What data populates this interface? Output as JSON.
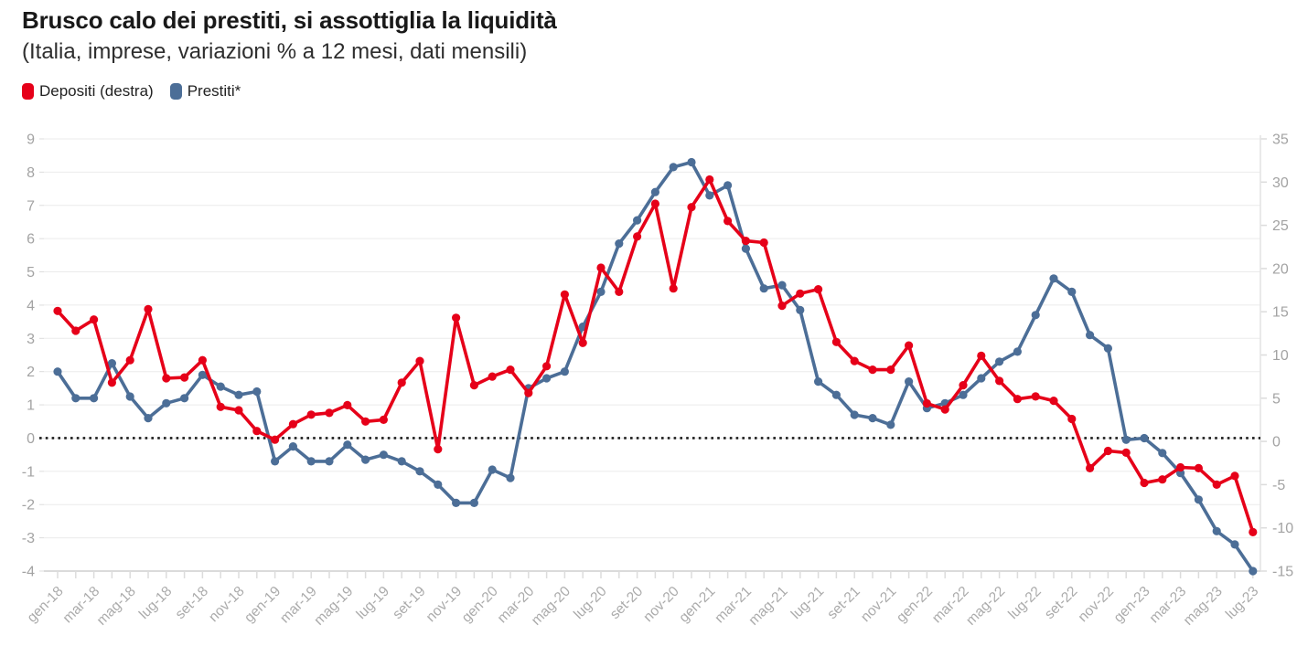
{
  "header": {
    "title": "Brusco calo dei prestiti, si assottiglia la liquidità",
    "subtitle": "(Italia, imprese, variazioni % a 12 mesi, dati mensili)"
  },
  "legend": [
    {
      "label": "Depositi (destra)",
      "color": "#e60019"
    },
    {
      "label": "Prestiti*",
      "color": "#4c6e97"
    }
  ],
  "chart_data": {
    "type": "line",
    "title": "Brusco calo dei prestiti, si assottiglia la liquidità",
    "subtitle": "(Italia, imprese, variazioni % a 12 mesi, dati mensili)",
    "grid": true,
    "zero_line": "dotted-black",
    "x_label_every": 2,
    "x": [
      "gen-18",
      "feb-18",
      "mar-18",
      "apr-18",
      "mag-18",
      "giu-18",
      "lug-18",
      "ago-18",
      "set-18",
      "ott-18",
      "nov-18",
      "dic-18",
      "gen-19",
      "feb-19",
      "mar-19",
      "apr-19",
      "mag-19",
      "giu-19",
      "lug-19",
      "ago-19",
      "set-19",
      "ott-19",
      "nov-19",
      "dic-19",
      "gen-20",
      "feb-20",
      "mar-20",
      "apr-20",
      "mag-20",
      "giu-20",
      "lug-20",
      "ago-20",
      "set-20",
      "ott-20",
      "nov-20",
      "dic-20",
      "gen-21",
      "feb-21",
      "mar-21",
      "apr-21",
      "mag-21",
      "giu-21",
      "lug-21",
      "ago-21",
      "set-21",
      "ott-21",
      "nov-21",
      "dic-21",
      "gen-22",
      "feb-22",
      "mar-22",
      "apr-22",
      "mag-22",
      "giu-22",
      "lug-22",
      "ago-22",
      "set-22",
      "ott-22",
      "nov-22",
      "dic-22",
      "gen-23",
      "feb-23",
      "mar-23",
      "apr-23",
      "mag-23",
      "giu-23",
      "lug-23"
    ],
    "left_axis": {
      "min": -4,
      "max": 9,
      "tick_step": 1,
      "series": "Prestiti*"
    },
    "right_axis": {
      "min": -15,
      "max": 35,
      "tick_step": 5,
      "series": "Depositi (destra)"
    },
    "series": [
      {
        "name": "Prestiti*",
        "axis": "left",
        "color": "#4c6e97",
        "values": [
          2.0,
          1.2,
          1.2,
          2.25,
          1.25,
          0.6,
          1.05,
          1.2,
          1.9,
          1.55,
          1.3,
          1.4,
          -0.7,
          -0.25,
          -0.7,
          -0.7,
          -0.2,
          -0.65,
          -0.5,
          -0.7,
          -1.0,
          -1.4,
          -1.95,
          -1.95,
          -0.95,
          -1.2,
          1.5,
          1.8,
          2.0,
          3.35,
          4.4,
          5.85,
          6.55,
          7.4,
          8.15,
          8.3,
          7.3,
          7.6,
          5.7,
          4.5,
          4.6,
          3.85,
          1.7,
          1.3,
          0.7,
          0.6,
          0.4,
          1.7,
          0.9,
          1.05,
          1.3,
          1.8,
          2.3,
          2.6,
          3.7,
          4.8,
          4.4,
          3.1,
          2.7,
          -0.05,
          0.0,
          -0.45,
          -1.05,
          -1.85,
          -2.8,
          -3.2,
          -4.0
        ]
      },
      {
        "name": "Depositi (destra)",
        "axis": "right",
        "color": "#e60019",
        "values": [
          15.1,
          12.8,
          14.1,
          6.8,
          9.4,
          15.3,
          7.3,
          7.4,
          9.4,
          4.0,
          3.6,
          1.2,
          0.2,
          2.0,
          3.1,
          3.3,
          4.2,
          2.3,
          2.5,
          6.8,
          9.3,
          -0.9,
          14.3,
          6.5,
          7.5,
          8.3,
          5.6,
          8.7,
          17.0,
          11.4,
          20.1,
          17.3,
          23.7,
          27.5,
          17.7,
          27.1,
          30.3,
          25.5,
          23.2,
          23.0,
          15.7,
          17.1,
          17.6,
          11.5,
          9.3,
          8.3,
          8.3,
          11.1,
          4.4,
          3.7,
          6.5,
          9.9,
          7.0,
          4.9,
          5.2,
          4.7,
          2.6,
          -3.1,
          -1.1,
          -1.3,
          -4.8,
          -4.4,
          -3.0,
          -3.1,
          -5.0,
          -4.0,
          -10.5
        ]
      }
    ]
  }
}
